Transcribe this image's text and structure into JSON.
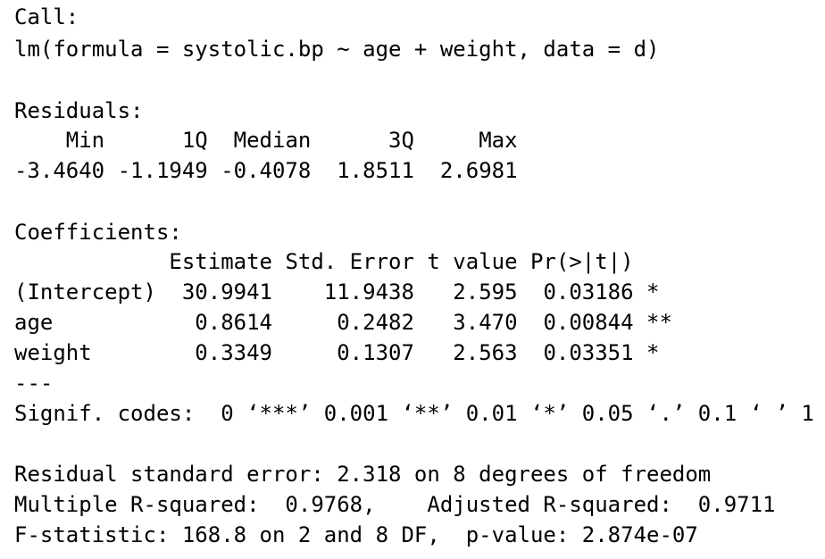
{
  "call": {
    "label": "Call:",
    "formula": "lm(formula = systolic.bp ~ age + weight, data = d)"
  },
  "residuals": {
    "label": "Residuals:",
    "headers": [
      "Min",
      "1Q",
      "Median",
      "3Q",
      "Max"
    ],
    "values": [
      "-3.4640",
      "-1.1949",
      "-0.4078",
      "1.8511",
      "2.6981"
    ]
  },
  "coefficients": {
    "label": "Coefficients:",
    "headers": [
      "Estimate",
      "Std. Error",
      "t value",
      "Pr(>|t|)"
    ],
    "rows": [
      [
        "(Intercept)",
        "30.9941",
        "11.9438",
        "2.595",
        "0.03186",
        "*"
      ],
      [
        "age",
        "0.8614",
        "0.2482",
        "3.470",
        "0.00844",
        "**"
      ],
      [
        "weight",
        "0.3349",
        "0.1307",
        "2.563",
        "0.03351",
        "*"
      ]
    ]
  },
  "separator": "---",
  "signif_codes": "Signif. codes:  0 ‘***’ 0.001 ‘**’ 0.01 ‘*’ 0.05 ‘.’ 0.1 ‘ ’ 1",
  "summary": [
    "Residual standard error: 2.318 on 8 degrees of freedom",
    "Multiple R-squared:  0.9768,    Adjusted R-squared:  0.9711",
    "F-statistic: 168.8 on 2 and 8 DF,  p-value: 2.874e-07"
  ]
}
